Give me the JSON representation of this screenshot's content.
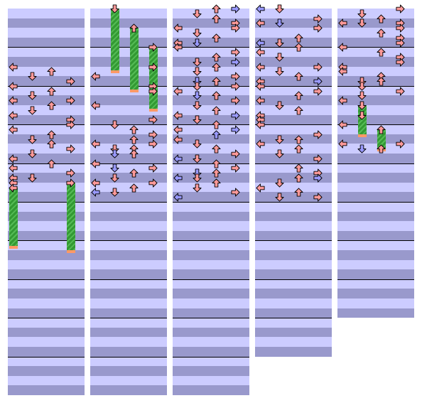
{
  "colors": {
    "band_light": "#ccccff",
    "band_dark": "#9999cc",
    "measure_line": "#000000",
    "note_quarter": "#ff9999",
    "note_eighth": "#9999ff",
    "hold_body": "#339933",
    "hold_tail": "#ff9966"
  },
  "icons": {
    "L": "arrow-left-icon",
    "D": "arrow-down-icon",
    "U": "arrow-up-icon",
    "R": "arrow-right-icon"
  },
  "chart": {
    "beats_per_measure": 4,
    "measures_per_column": [
      10,
      10,
      10,
      9,
      8
    ],
    "notes": [
      [
        {
          "beat": 6.0,
          "dir": "L",
          "c": "r"
        },
        {
          "beat": 6.5,
          "dir": "U",
          "c": "r"
        },
        {
          "beat": 7.0,
          "dir": "D",
          "c": "r"
        },
        {
          "beat": 7.5,
          "dir": "R",
          "c": "r"
        },
        {
          "beat": 8.0,
          "dir": "L",
          "c": "r"
        },
        {
          "beat": 8.5,
          "dir": "U",
          "c": "r"
        },
        {
          "beat": 9.0,
          "dir": "D",
          "c": "r"
        },
        {
          "beat": 9.5,
          "dir": "L",
          "c": "r"
        },
        {
          "beat": 9.5,
          "dir": "R",
          "c": "r"
        },
        {
          "beat": 10.0,
          "dir": "U",
          "c": "r"
        },
        {
          "beat": 10.5,
          "dir": "D",
          "c": "r"
        },
        {
          "beat": 11.0,
          "dir": "L",
          "c": "r"
        },
        {
          "beat": 11.5,
          "dir": "R",
          "c": "r"
        },
        {
          "beat": 12.0,
          "dir": "R",
          "c": "r"
        },
        {
          "beat": 12.5,
          "dir": "L",
          "c": "r"
        },
        {
          "beat": 13.0,
          "dir": "U",
          "c": "r"
        },
        {
          "beat": 13.5,
          "dir": "D",
          "c": "r"
        },
        {
          "beat": 14.0,
          "dir": "U",
          "c": "r"
        },
        {
          "beat": 14.5,
          "dir": "R",
          "c": "r"
        },
        {
          "beat": 15.0,
          "dir": "D",
          "c": "r"
        },
        {
          "beat": 15.5,
          "dir": "L",
          "c": "r"
        },
        {
          "beat": 16.0,
          "dir": "U",
          "c": "r"
        },
        {
          "beat": 16.5,
          "dir": "L",
          "c": "r"
        },
        {
          "beat": 17.0,
          "dir": "R",
          "c": "r"
        },
        {
          "beat": 17.5,
          "dir": "D",
          "c": "r"
        },
        {
          "beat": 17.5,
          "dir": "L",
          "c": "r"
        },
        {
          "beat": 18.0,
          "dir": "L",
          "c": "r"
        },
        {
          "beat": 18.0,
          "dir": "R",
          "c": "r",
          "hold": 1.75
        },
        {
          "beat": 18.5,
          "dir": "L",
          "c": "r",
          "hold": 1.5
        }
      ],
      [
        {
          "beat": 0.0,
          "dir": "D",
          "c": "r",
          "hold": 1.6
        },
        {
          "beat": 2.0,
          "dir": "U",
          "c": "r",
          "hold": 1.6
        },
        {
          "beat": 4.0,
          "dir": "R",
          "c": "r",
          "hold": 1.6
        },
        {
          "beat": 6.0,
          "dir": "R",
          "c": "r"
        },
        {
          "beat": 7.0,
          "dir": "L",
          "c": "r"
        },
        {
          "beat": 8.0,
          "dir": "R",
          "c": "r"
        },
        {
          "beat": 8.5,
          "dir": "R",
          "c": "r"
        },
        {
          "beat": 10.0,
          "dir": "L",
          "c": "r"
        },
        {
          "beat": 11.5,
          "dir": "R",
          "c": "r"
        },
        {
          "beat": 12.0,
          "dir": "D",
          "c": "r"
        },
        {
          "beat": 12.5,
          "dir": "U",
          "c": "r"
        },
        {
          "beat": 13.0,
          "dir": "R",
          "c": "r"
        },
        {
          "beat": 13.5,
          "dir": "U",
          "c": "r"
        },
        {
          "beat": 14.0,
          "dir": "L",
          "c": "r"
        },
        {
          "beat": 14.0,
          "dir": "R",
          "c": "r"
        },
        {
          "beat": 14.5,
          "dir": "D",
          "c": "r"
        },
        {
          "beat": 14.5,
          "dir": "U",
          "c": "r"
        },
        {
          "beat": 15.0,
          "dir": "D",
          "c": "b"
        },
        {
          "beat": 15.0,
          "dir": "U",
          "c": "r"
        },
        {
          "beat": 16.0,
          "dir": "L",
          "c": "r"
        },
        {
          "beat": 16.5,
          "dir": "D",
          "c": "b"
        },
        {
          "beat": 16.5,
          "dir": "R",
          "c": "r"
        },
        {
          "beat": 17.0,
          "dir": "U",
          "c": "r"
        },
        {
          "beat": 17.5,
          "dir": "D",
          "c": "r"
        },
        {
          "beat": 18.0,
          "dir": "L",
          "c": "r"
        },
        {
          "beat": 18.0,
          "dir": "R",
          "c": "r"
        },
        {
          "beat": 18.5,
          "dir": "U",
          "c": "r"
        },
        {
          "beat": 19.0,
          "dir": "L",
          "c": "b"
        },
        {
          "beat": 19.0,
          "dir": "D",
          "c": "r"
        }
      ],
      [
        {
          "beat": 0.0,
          "dir": "U",
          "c": "r"
        },
        {
          "beat": 0.0,
          "dir": "R",
          "c": "b"
        },
        {
          "beat": 0.5,
          "dir": "D",
          "c": "r"
        },
        {
          "beat": 1.0,
          "dir": "U",
          "c": "r"
        },
        {
          "beat": 1.5,
          "dir": "R",
          "c": "r"
        },
        {
          "beat": 2.0,
          "dir": "L",
          "c": "r"
        },
        {
          "beat": 2.0,
          "dir": "R",
          "c": "r"
        },
        {
          "beat": 2.5,
          "dir": "D",
          "c": "r"
        },
        {
          "beat": 3.0,
          "dir": "U",
          "c": "r"
        },
        {
          "beat": 3.5,
          "dir": "L",
          "c": "r"
        },
        {
          "beat": 3.5,
          "dir": "D",
          "c": "b"
        },
        {
          "beat": 4.0,
          "dir": "L",
          "c": "r"
        },
        {
          "beat": 4.5,
          "dir": "R",
          "c": "r"
        },
        {
          "beat": 5.0,
          "dir": "U",
          "c": "r"
        },
        {
          "beat": 5.5,
          "dir": "R",
          "c": "b"
        },
        {
          "beat": 5.5,
          "dir": "D",
          "c": "r"
        },
        {
          "beat": 6.0,
          "dir": "U",
          "c": "r"
        },
        {
          "beat": 6.5,
          "dir": "D",
          "c": "r"
        },
        {
          "beat": 7.0,
          "dir": "R",
          "c": "r"
        },
        {
          "beat": 7.5,
          "dir": "D",
          "c": "b"
        },
        {
          "beat": 7.5,
          "dir": "U",
          "c": "r"
        },
        {
          "beat": 8.0,
          "dir": "R",
          "c": "r"
        },
        {
          "beat": 8.0,
          "dir": "D",
          "c": "r"
        },
        {
          "beat": 8.5,
          "dir": "L",
          "c": "r"
        },
        {
          "beat": 9.0,
          "dir": "D",
          "c": "b"
        },
        {
          "beat": 9.0,
          "dir": "U",
          "c": "r"
        },
        {
          "beat": 9.5,
          "dir": "R",
          "c": "r"
        },
        {
          "beat": 10.0,
          "dir": "D",
          "c": "r"
        },
        {
          "beat": 10.5,
          "dir": "U",
          "c": "r"
        },
        {
          "beat": 11.0,
          "dir": "R",
          "c": "b"
        },
        {
          "beat": 11.0,
          "dir": "L",
          "c": "r"
        },
        {
          "beat": 11.5,
          "dir": "D",
          "c": "r"
        },
        {
          "beat": 12.0,
          "dir": "U",
          "c": "r"
        },
        {
          "beat": 12.5,
          "dir": "R",
          "c": "b"
        },
        {
          "beat": 12.5,
          "dir": "L",
          "c": "r"
        },
        {
          "beat": 13.0,
          "dir": "U",
          "c": "b"
        },
        {
          "beat": 13.5,
          "dir": "L",
          "c": "r"
        },
        {
          "beat": 14.0,
          "dir": "D",
          "c": "r"
        },
        {
          "beat": 14.5,
          "dir": "U",
          "c": "r"
        },
        {
          "beat": 15.0,
          "dir": "R",
          "c": "r"
        },
        {
          "beat": 15.5,
          "dir": "L",
          "c": "b"
        },
        {
          "beat": 15.5,
          "dir": "D",
          "c": "r"
        },
        {
          "beat": 16.0,
          "dir": "U",
          "c": "r"
        },
        {
          "beat": 16.5,
          "dir": "R",
          "c": "r"
        },
        {
          "beat": 17.0,
          "dir": "D",
          "c": "b"
        },
        {
          "beat": 17.0,
          "dir": "U",
          "c": "r"
        },
        {
          "beat": 17.5,
          "dir": "L",
          "c": "b"
        },
        {
          "beat": 17.5,
          "dir": "D",
          "c": "r"
        },
        {
          "beat": 18.0,
          "dir": "U",
          "c": "r"
        },
        {
          "beat": 18.5,
          "dir": "D",
          "c": "r"
        },
        {
          "beat": 19.0,
          "dir": "R",
          "c": "r"
        },
        {
          "beat": 19.5,
          "dir": "L",
          "c": "b"
        }
      ],
      [
        {
          "beat": 0.0,
          "dir": "L",
          "c": "b"
        },
        {
          "beat": 0.0,
          "dir": "D",
          "c": "r"
        },
        {
          "beat": 1.0,
          "dir": "R",
          "c": "r"
        },
        {
          "beat": 1.5,
          "dir": "L",
          "c": "r"
        },
        {
          "beat": 1.5,
          "dir": "D",
          "c": "b"
        },
        {
          "beat": 2.0,
          "dir": "R",
          "c": "r"
        },
        {
          "beat": 3.0,
          "dir": "U",
          "c": "r"
        },
        {
          "beat": 3.5,
          "dir": "D",
          "c": "r"
        },
        {
          "beat": 3.5,
          "dir": "L",
          "c": "b"
        },
        {
          "beat": 4.0,
          "dir": "U",
          "c": "r"
        },
        {
          "beat": 4.5,
          "dir": "L",
          "c": "r"
        },
        {
          "beat": 5.0,
          "dir": "D",
          "c": "r"
        },
        {
          "beat": 6.0,
          "dir": "L",
          "c": "r"
        },
        {
          "beat": 6.0,
          "dir": "R",
          "c": "r"
        },
        {
          "beat": 6.5,
          "dir": "D",
          "c": "r"
        },
        {
          "beat": 7.0,
          "dir": "U",
          "c": "r"
        },
        {
          "beat": 7.5,
          "dir": "L",
          "c": "r"
        },
        {
          "beat": 7.5,
          "dir": "R",
          "c": "b"
        },
        {
          "beat": 8.0,
          "dir": "L",
          "c": "r"
        },
        {
          "beat": 8.5,
          "dir": "R",
          "c": "r"
        },
        {
          "beat": 9.0,
          "dir": "U",
          "c": "r"
        },
        {
          "beat": 9.5,
          "dir": "L",
          "c": "r"
        },
        {
          "beat": 10.0,
          "dir": "D",
          "c": "r"
        },
        {
          "beat": 10.5,
          "dir": "U",
          "c": "r"
        },
        {
          "beat": 11.0,
          "dir": "L",
          "c": "r"
        },
        {
          "beat": 11.5,
          "dir": "L",
          "c": "r"
        },
        {
          "beat": 12.0,
          "dir": "L",
          "c": "r"
        },
        {
          "beat": 13.0,
          "dir": "R",
          "c": "r"
        },
        {
          "beat": 13.5,
          "dir": "D",
          "c": "r"
        },
        {
          "beat": 13.5,
          "dir": "U",
          "c": "r"
        },
        {
          "beat": 14.0,
          "dir": "L",
          "c": "r"
        },
        {
          "beat": 14.5,
          "dir": "U",
          "c": "r"
        },
        {
          "beat": 15.0,
          "dir": "D",
          "c": "r"
        },
        {
          "beat": 15.5,
          "dir": "R",
          "c": "r"
        },
        {
          "beat": 16.5,
          "dir": "U",
          "c": "r"
        },
        {
          "beat": 17.0,
          "dir": "R",
          "c": "r"
        },
        {
          "beat": 17.5,
          "dir": "U",
          "c": "r"
        },
        {
          "beat": 17.5,
          "dir": "R",
          "c": "b"
        },
        {
          "beat": 18.0,
          "dir": "D",
          "c": "r"
        },
        {
          "beat": 18.5,
          "dir": "L",
          "c": "r"
        },
        {
          "beat": 19.0,
          "dir": "U",
          "c": "r"
        },
        {
          "beat": 19.5,
          "dir": "D",
          "c": "r"
        },
        {
          "beat": 19.5,
          "dir": "R",
          "c": "r"
        }
      ],
      [
        {
          "beat": 0.0,
          "dir": "R",
          "c": "r"
        },
        {
          "beat": 0.5,
          "dir": "D",
          "c": "r"
        },
        {
          "beat": 1.0,
          "dir": "U",
          "c": "r"
        },
        {
          "beat": 1.5,
          "dir": "L",
          "c": "r"
        },
        {
          "beat": 1.5,
          "dir": "D",
          "c": "r"
        },
        {
          "beat": 1.5,
          "dir": "R",
          "c": "r"
        },
        {
          "beat": 2.0,
          "dir": "R",
          "c": "r"
        },
        {
          "beat": 2.5,
          "dir": "U",
          "c": "r"
        },
        {
          "beat": 3.0,
          "dir": "R",
          "c": "r"
        },
        {
          "beat": 3.5,
          "dir": "R",
          "c": "r"
        },
        {
          "beat": 4.0,
          "dir": "L",
          "c": "r"
        },
        {
          "beat": 4.5,
          "dir": "U",
          "c": "r"
        },
        {
          "beat": 5.0,
          "dir": "R",
          "c": "r"
        },
        {
          "beat": 5.5,
          "dir": "R",
          "c": "r"
        },
        {
          "beat": 6.0,
          "dir": "L",
          "c": "r"
        },
        {
          "beat": 6.5,
          "dir": "L",
          "c": "r"
        },
        {
          "beat": 7.0,
          "dir": "U",
          "c": "r"
        },
        {
          "beat": 7.5,
          "dir": "D",
          "c": "r"
        },
        {
          "beat": 7.5,
          "dir": "U",
          "c": "r"
        },
        {
          "beat": 8.0,
          "dir": "D",
          "c": "r"
        },
        {
          "beat": 8.5,
          "dir": "R",
          "c": "r"
        },
        {
          "beat": 9.0,
          "dir": "D",
          "c": "r"
        },
        {
          "beat": 9.5,
          "dir": "L",
          "c": "r"
        },
        {
          "beat": 10.0,
          "dir": "D",
          "c": "r",
          "hold": 0.5
        },
        {
          "beat": 11.0,
          "dir": "D",
          "c": "r",
          "hold": 0.5
        },
        {
          "beat": 12.0,
          "dir": "L",
          "c": "r"
        },
        {
          "beat": 12.5,
          "dir": "U",
          "c": "r",
          "hold": 0.5
        },
        {
          "beat": 14.0,
          "dir": "L",
          "c": "r"
        },
        {
          "beat": 14.0,
          "dir": "R",
          "c": "r"
        },
        {
          "beat": 14.5,
          "dir": "U",
          "c": "r"
        },
        {
          "beat": 14.5,
          "dir": "D",
          "c": "b"
        }
      ]
    ]
  }
}
